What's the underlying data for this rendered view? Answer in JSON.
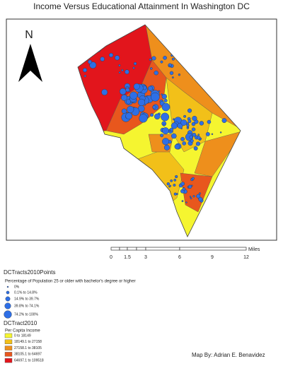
{
  "title": "Income Versus Educational Attainment In Washington DC",
  "north": "N",
  "scale_bar": {
    "labels": [
      "0",
      "1.5",
      "3",
      "6",
      "9",
      "12"
    ],
    "unit": "Miles"
  },
  "points_legend": {
    "layer": "DCTracts2010Points",
    "field": "Percentage of Population 25 or older with bachelor's degree or higher",
    "items": [
      "0%",
      "0.1% to 14.8%",
      "14.9% to 39.7%",
      "39.8% to 74.1%",
      "74.2% to 100%"
    ],
    "color": "#2e6fe6"
  },
  "tracts_legend": {
    "layer": "DCTract2010",
    "field": "Per Capita Income",
    "items": [
      {
        "label": "0 to 18149",
        "color": "#f5f530"
      },
      {
        "label": "18149.1 to 27158",
        "color": "#f2c019"
      },
      {
        "label": "27158.1 to 38105",
        "color": "#ee8f1c"
      },
      {
        "label": "38105.1 to 64697",
        "color": "#e8571d"
      },
      {
        "label": "64697.1 to 109518",
        "color": "#e2151c"
      }
    ]
  },
  "credit": "Map By: Adrian E. Benavidez"
}
